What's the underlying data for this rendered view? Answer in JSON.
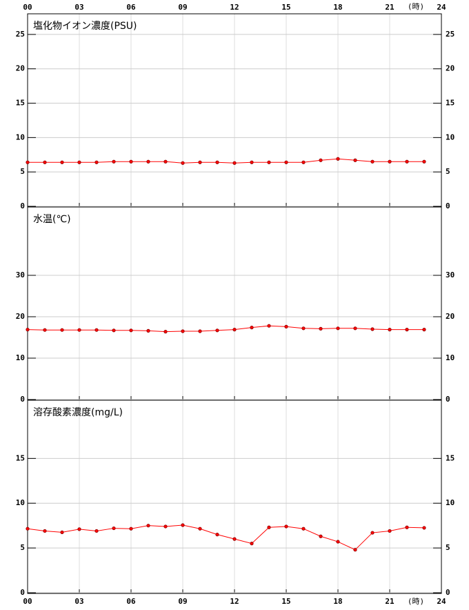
{
  "chart_data": [
    {
      "type": "line",
      "title": "塩化物イオン濃度(PSU)",
      "xaxis": "top",
      "xlabel": "(時)",
      "grid": true,
      "xlim": [
        0,
        24
      ],
      "xticks": [
        {
          "value": 0,
          "label": "00"
        },
        {
          "value": 3,
          "label": "03"
        },
        {
          "value": 6,
          "label": "06"
        },
        {
          "value": 9,
          "label": "09"
        },
        12,
        15,
        18,
        21,
        24
      ],
      "ylim": [
        0,
        28
      ],
      "yticks": [
        0,
        5,
        10,
        15,
        20,
        25
      ],
      "x": [
        0,
        1,
        2,
        3,
        4,
        5,
        6,
        7,
        8,
        9,
        10,
        11,
        12,
        13,
        14,
        15,
        16,
        17,
        18,
        19,
        20,
        21,
        22,
        23
      ],
      "series": [
        {
          "color": "#ff0000",
          "values": [
            6.4,
            6.4,
            6.4,
            6.4,
            6.4,
            6.5,
            6.5,
            6.5,
            6.5,
            6.3,
            6.4,
            6.4,
            6.3,
            6.4,
            6.4,
            6.4,
            6.4,
            6.7,
            6.9,
            6.7,
            6.5,
            6.5,
            6.5,
            6.5
          ]
        }
      ]
    },
    {
      "type": "line",
      "title": "水温(℃)",
      "xaxis": "none",
      "grid": true,
      "xlim": [
        0,
        24
      ],
      "xticks": [
        {
          "value": 0,
          "label": "00"
        },
        {
          "value": 3,
          "label": "03"
        },
        {
          "value": 6,
          "label": "06"
        },
        {
          "value": 9,
          "label": "09"
        },
        12,
        15,
        18,
        21,
        24
      ],
      "ylim": [
        0,
        46.5
      ],
      "yticks": [
        0,
        10,
        20,
        30
      ],
      "x": [
        0,
        1,
        2,
        3,
        4,
        5,
        6,
        7,
        8,
        9,
        10,
        11,
        12,
        13,
        14,
        15,
        16,
        17,
        18,
        19,
        20,
        21,
        22,
        23
      ],
      "series": [
        {
          "color": "#ff0000",
          "values": [
            16.9,
            16.8,
            16.8,
            16.8,
            16.8,
            16.7,
            16.7,
            16.6,
            16.4,
            16.5,
            16.5,
            16.7,
            16.9,
            17.4,
            17.8,
            17.6,
            17.2,
            17.1,
            17.2,
            17.2,
            17.0,
            16.9,
            16.9,
            16.9
          ]
        }
      ]
    },
    {
      "type": "line",
      "title": "溶存酸素濃度(mg/L)",
      "xaxis": "bottom",
      "xlabel": "(時)",
      "grid": true,
      "xlim": [
        0,
        24
      ],
      "xticks": [
        {
          "value": 0,
          "label": "00"
        },
        {
          "value": 3,
          "label": "03"
        },
        {
          "value": 6,
          "label": "06"
        },
        {
          "value": 9,
          "label": "09"
        },
        12,
        15,
        18,
        21,
        24
      ],
      "ylim": [
        0,
        21.5
      ],
      "yticks": [
        0,
        5,
        10,
        15
      ],
      "x": [
        0,
        1,
        2,
        3,
        4,
        5,
        6,
        7,
        8,
        9,
        10,
        11,
        12,
        13,
        14,
        15,
        16,
        17,
        18,
        19,
        20,
        21,
        22,
        23
      ],
      "series": [
        {
          "color": "#ff0000",
          "values": [
            7.15,
            6.9,
            6.75,
            7.1,
            6.9,
            7.2,
            7.15,
            7.5,
            7.4,
            7.55,
            7.15,
            6.5,
            6.0,
            5.5,
            7.3,
            7.4,
            7.15,
            6.3,
            5.7,
            4.8,
            6.7,
            6.9,
            7.3,
            7.25
          ]
        }
      ]
    }
  ]
}
